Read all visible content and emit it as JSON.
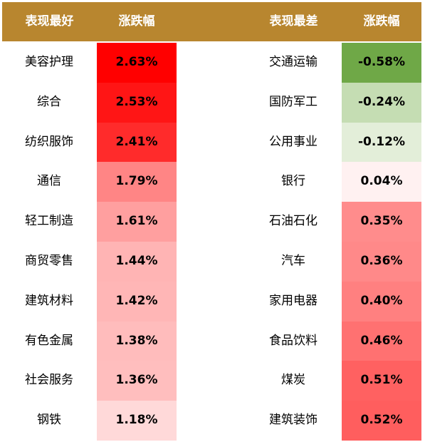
{
  "table": {
    "headers": {
      "best": "表现最好",
      "best_change": "涨跌幅",
      "worst": "表现最差",
      "worst_change": "涨跌幅"
    }
  },
  "colors": {
    "header": "#B8862F"
  },
  "chart_data": {
    "type": "table",
    "columns": [
      "表现最好",
      "涨跌幅",
      "表现最差",
      "涨跌幅"
    ],
    "best": [
      {
        "name": "美容护理",
        "value": "2.63%",
        "color": "#FF0000"
      },
      {
        "name": "综合",
        "value": "2.53%",
        "color": "#FF1515"
      },
      {
        "name": "纺织服饰",
        "value": "2.41%",
        "color": "#FF2B2B"
      },
      {
        "name": "通信",
        "value": "1.79%",
        "color": "#FF8585"
      },
      {
        "name": "轻工制造",
        "value": "1.61%",
        "color": "#FF9F9F"
      },
      {
        "name": "商贸零售",
        "value": "1.44%",
        "color": "#FFB4B4"
      },
      {
        "name": "建筑材料",
        "value": "1.42%",
        "color": "#FFB6B6"
      },
      {
        "name": "有色金属",
        "value": "1.38%",
        "color": "#FFBCBC"
      },
      {
        "name": "社会服务",
        "value": "1.36%",
        "color": "#FFBEBE"
      },
      {
        "name": "钢铁",
        "value": "1.18%",
        "color": "#FFD9D9"
      }
    ],
    "worst": [
      {
        "name": "交通运输",
        "value": "-0.58%",
        "color": "#6FA847"
      },
      {
        "name": "国防军工",
        "value": "-0.24%",
        "color": "#C5DDB3"
      },
      {
        "name": "公用事业",
        "value": "-0.12%",
        "color": "#E3EED9"
      },
      {
        "name": "银行",
        "value": "0.04%",
        "color": "#FFF1F1"
      },
      {
        "name": "石油石化",
        "value": "0.35%",
        "color": "#FF8C8C"
      },
      {
        "name": "汽车",
        "value": "0.36%",
        "color": "#FF8989"
      },
      {
        "name": "家用电器",
        "value": "0.40%",
        "color": "#FF8080"
      },
      {
        "name": "食品饮料",
        "value": "0.46%",
        "color": "#FF7171"
      },
      {
        "name": "煤炭",
        "value": "0.51%",
        "color": "#FF6161"
      },
      {
        "name": "建筑装饰",
        "value": "0.52%",
        "color": "#FF5E5E"
      }
    ]
  }
}
